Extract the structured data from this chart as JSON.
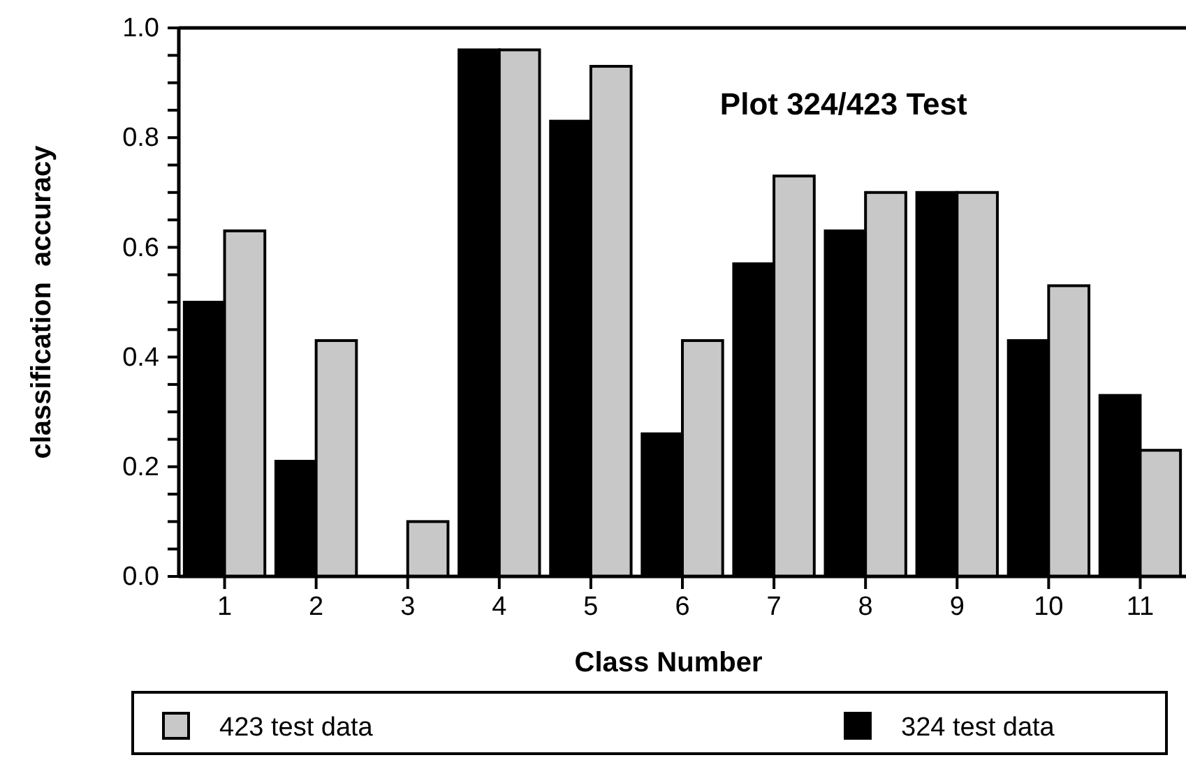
{
  "chart_data": {
    "type": "bar",
    "title": "Plot 324/423 Test",
    "xlabel": "Class Number",
    "ylabel": "classification  accuracy",
    "categories": [
      "1",
      "2",
      "3",
      "4",
      "5",
      "6",
      "7",
      "8",
      "9",
      "10",
      "11"
    ],
    "series": [
      {
        "name": "324 test data",
        "color": "#000000",
        "values": [
          0.5,
          0.21,
          0,
          0.96,
          0.83,
          0.26,
          0.57,
          0.63,
          0.7,
          0.43,
          0.33
        ]
      },
      {
        "name": "423 test data",
        "color": "#c8c8c8",
        "values": [
          0.63,
          0.43,
          0.1,
          0.96,
          0.93,
          0.43,
          0.73,
          0.7,
          0.7,
          0.53,
          0.23
        ]
      }
    ],
    "ylim": [
      0,
      1
    ],
    "yticks": [
      {
        "value": 0,
        "label": "0.0"
      },
      {
        "value": 0.05,
        "label": null
      },
      {
        "value": 0.1,
        "label": null
      },
      {
        "value": 0.15,
        "label": null
      },
      {
        "value": 0.2,
        "label": "0.2"
      },
      {
        "value": 0.25,
        "label": null
      },
      {
        "value": 0.3,
        "label": null
      },
      {
        "value": 0.35,
        "label": null
      },
      {
        "value": 0.4,
        "label": "0.4"
      },
      {
        "value": 0.45,
        "label": null
      },
      {
        "value": 0.5,
        "label": null
      },
      {
        "value": 0.55,
        "label": null
      },
      {
        "value": 0.6,
        "label": "0.6"
      },
      {
        "value": 0.65,
        "label": null
      },
      {
        "value": 0.7,
        "label": null
      },
      {
        "value": 0.75,
        "label": null
      },
      {
        "value": 0.8,
        "label": "0.8"
      },
      {
        "value": 0.85,
        "label": null
      },
      {
        "value": 0.9,
        "label": null
      },
      {
        "value": 0.95,
        "label": null
      },
      {
        "value": 1,
        "label": "1.0"
      }
    ],
    "grid": false,
    "legend": "bottom"
  }
}
